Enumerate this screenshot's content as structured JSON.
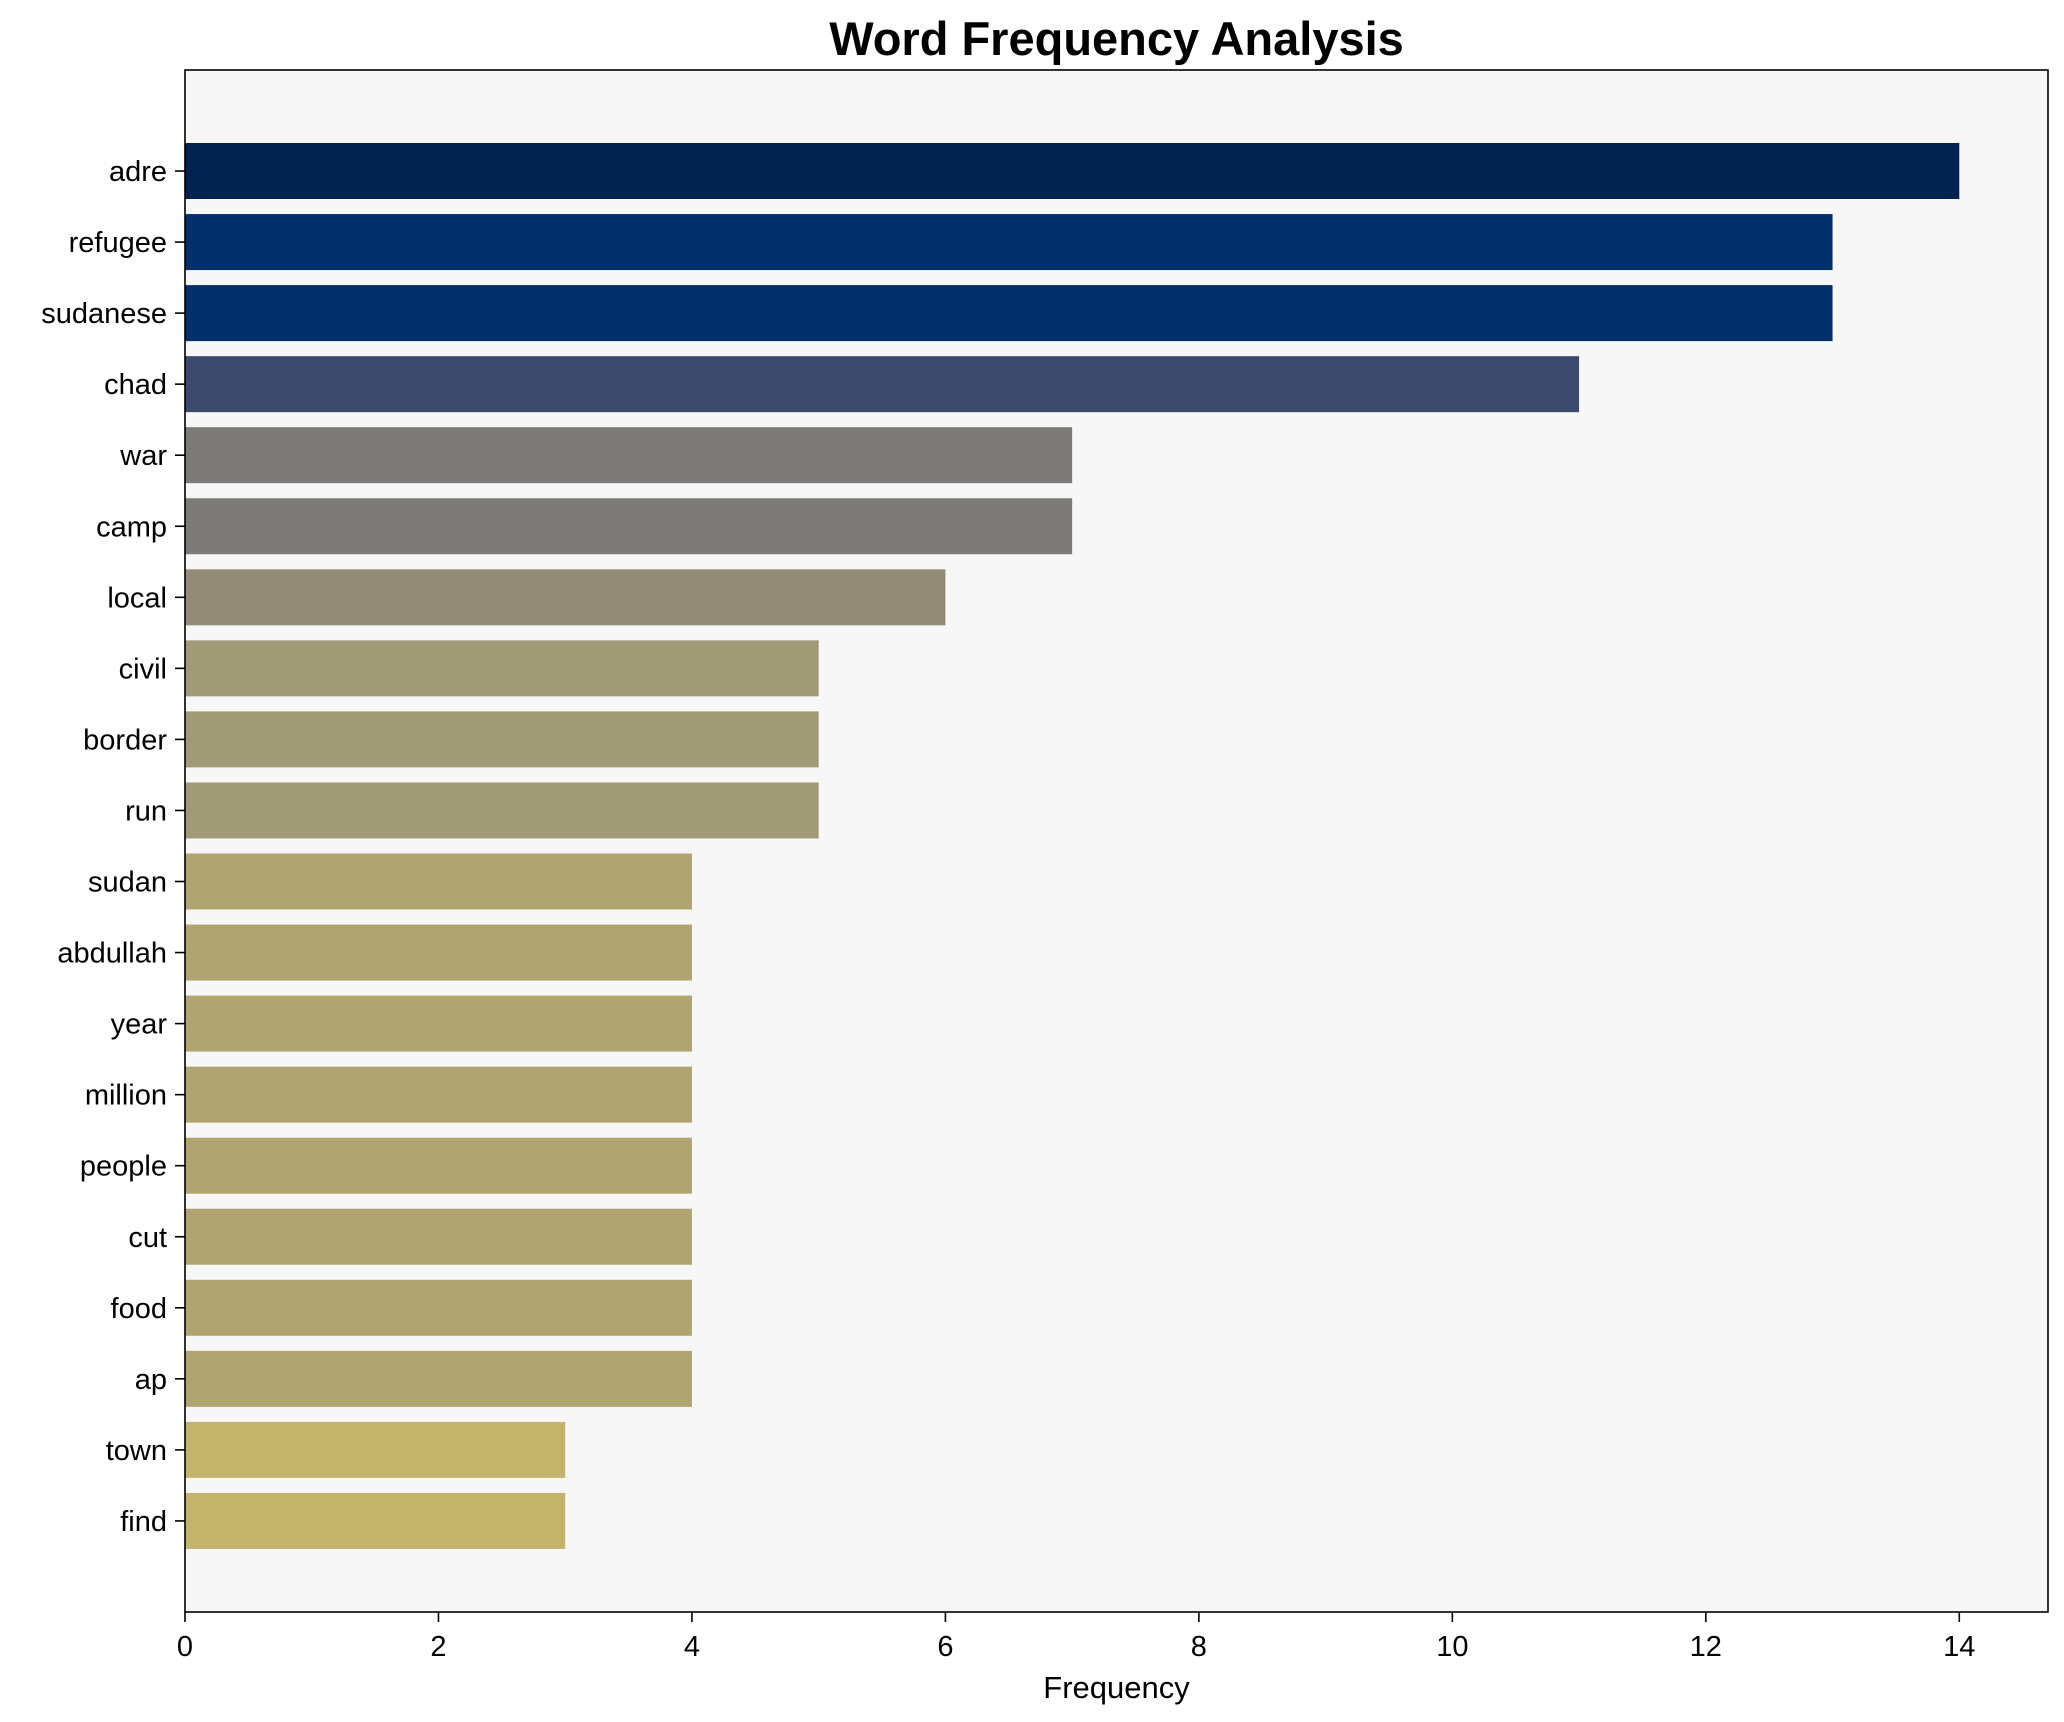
{
  "chart_data": {
    "type": "bar",
    "orientation": "horizontal",
    "title": "Word Frequency Analysis",
    "xlabel": "Frequency",
    "ylabel": "",
    "xlim": [
      0,
      14.7
    ],
    "xticks": [
      0,
      2,
      4,
      6,
      8,
      10,
      12,
      14
    ],
    "grid": false,
    "background": "#f7f7f7",
    "categories": [
      "adre",
      "refugee",
      "sudanese",
      "chad",
      "war",
      "camp",
      "local",
      "civil",
      "border",
      "run",
      "sudan",
      "abdullah",
      "year",
      "million",
      "people",
      "cut",
      "food",
      "ap",
      "town",
      "find"
    ],
    "values": [
      14,
      13,
      13,
      11,
      7,
      7,
      6,
      5,
      5,
      5,
      4,
      4,
      4,
      4,
      4,
      4,
      4,
      4,
      3,
      3
    ],
    "colors": [
      "#00224e",
      "#002f6c",
      "#002f6c",
      "#3b496c",
      "#7c7b78",
      "#7c7b78",
      "#918b78",
      "#a19a77",
      "#a19a77",
      "#a19a77",
      "#b0a571",
      "#b0a571",
      "#b0a571",
      "#b0a571",
      "#b0a571",
      "#b0a571",
      "#b0a571",
      "#b0a571",
      "#c4b46b",
      "#c4b46b"
    ]
  }
}
